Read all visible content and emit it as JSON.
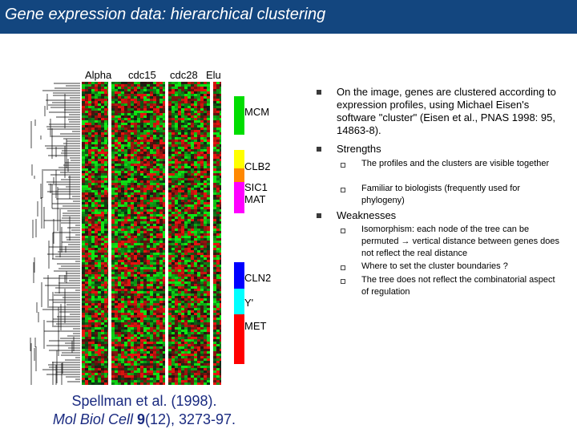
{
  "slide": {
    "title": "Gene expression data: hierarchical clustering",
    "column_labels": [
      "Alpha",
      "cdc15",
      "cdc28",
      "Elu"
    ],
    "clusters": [
      {
        "label": "MCM",
        "color": "#00dd00"
      },
      {
        "label": "CLB2",
        "color": "#ffff00"
      },
      {
        "label": "",
        "color": "#ff8800"
      },
      {
        "label": "SIC1\nMAT",
        "color": "#ff00ff"
      },
      {
        "label": "CLN2",
        "color": "#0000ff"
      },
      {
        "label": "Y'",
        "color": "#00ffff"
      },
      {
        "label": "MET",
        "color": "#ff0000"
      }
    ],
    "bullets": [
      {
        "text": "On the image, genes are clustered according to expression profiles, using Michael Eisen's software \"cluster\" (Eisen et al., PNAS 1998: 95, 14863-8).",
        "sub": []
      },
      {
        "text": "Strengths",
        "sub": [
          "The profiles and the clusters are visible together",
          "Familiar to biologists (frequently used for phylogeny)"
        ]
      },
      {
        "text": "Weaknesses",
        "sub": [
          "Isomorphism: each node of the tree can be permuted → vertical distance between genes does not reflect the real distance",
          "Where to set the cluster boundaries ?",
          "The tree does not reflect the combinatorial aspect of regulation"
        ]
      }
    ],
    "reference": {
      "line1": "Spellman et al. (1998).",
      "journal": "Mol Biol Cell",
      "volume": "9",
      "pages": "(12), 3273-97."
    }
  }
}
